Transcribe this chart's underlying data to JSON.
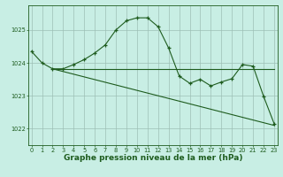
{
  "bg_color": "#c8eee4",
  "grid_color": "#9dbfb5",
  "line_color": "#1e5c1e",
  "xlabel": "Graphe pression niveau de la mer (hPa)",
  "xlabel_fontsize": 6.5,
  "ylim": [
    1021.5,
    1025.75
  ],
  "xlim": [
    -0.3,
    23.3
  ],
  "yticks": [
    1022,
    1023,
    1024,
    1025
  ],
  "xticks": [
    0,
    1,
    2,
    3,
    4,
    5,
    6,
    7,
    8,
    9,
    10,
    11,
    12,
    13,
    14,
    15,
    16,
    17,
    18,
    19,
    20,
    21,
    22,
    23
  ],
  "series1_x": [
    0,
    1,
    2,
    3,
    4,
    5,
    6,
    7,
    8,
    9,
    10,
    11,
    12,
    13,
    14,
    15,
    16,
    17,
    18,
    19,
    20,
    21,
    22,
    23
  ],
  "series1_y": [
    1024.35,
    1024.0,
    1023.82,
    1023.82,
    1023.95,
    1024.1,
    1024.3,
    1024.55,
    1025.0,
    1025.28,
    1025.37,
    1025.37,
    1025.1,
    1024.45,
    1023.6,
    1023.38,
    1023.5,
    1023.3,
    1023.42,
    1023.52,
    1023.95,
    1023.9,
    1022.98,
    1022.15
  ],
  "series2_x": [
    2,
    23
  ],
  "series2_y": [
    1023.82,
    1023.82
  ],
  "series3_x": [
    2,
    23
  ],
  "series3_y": [
    1023.82,
    1022.1
  ]
}
